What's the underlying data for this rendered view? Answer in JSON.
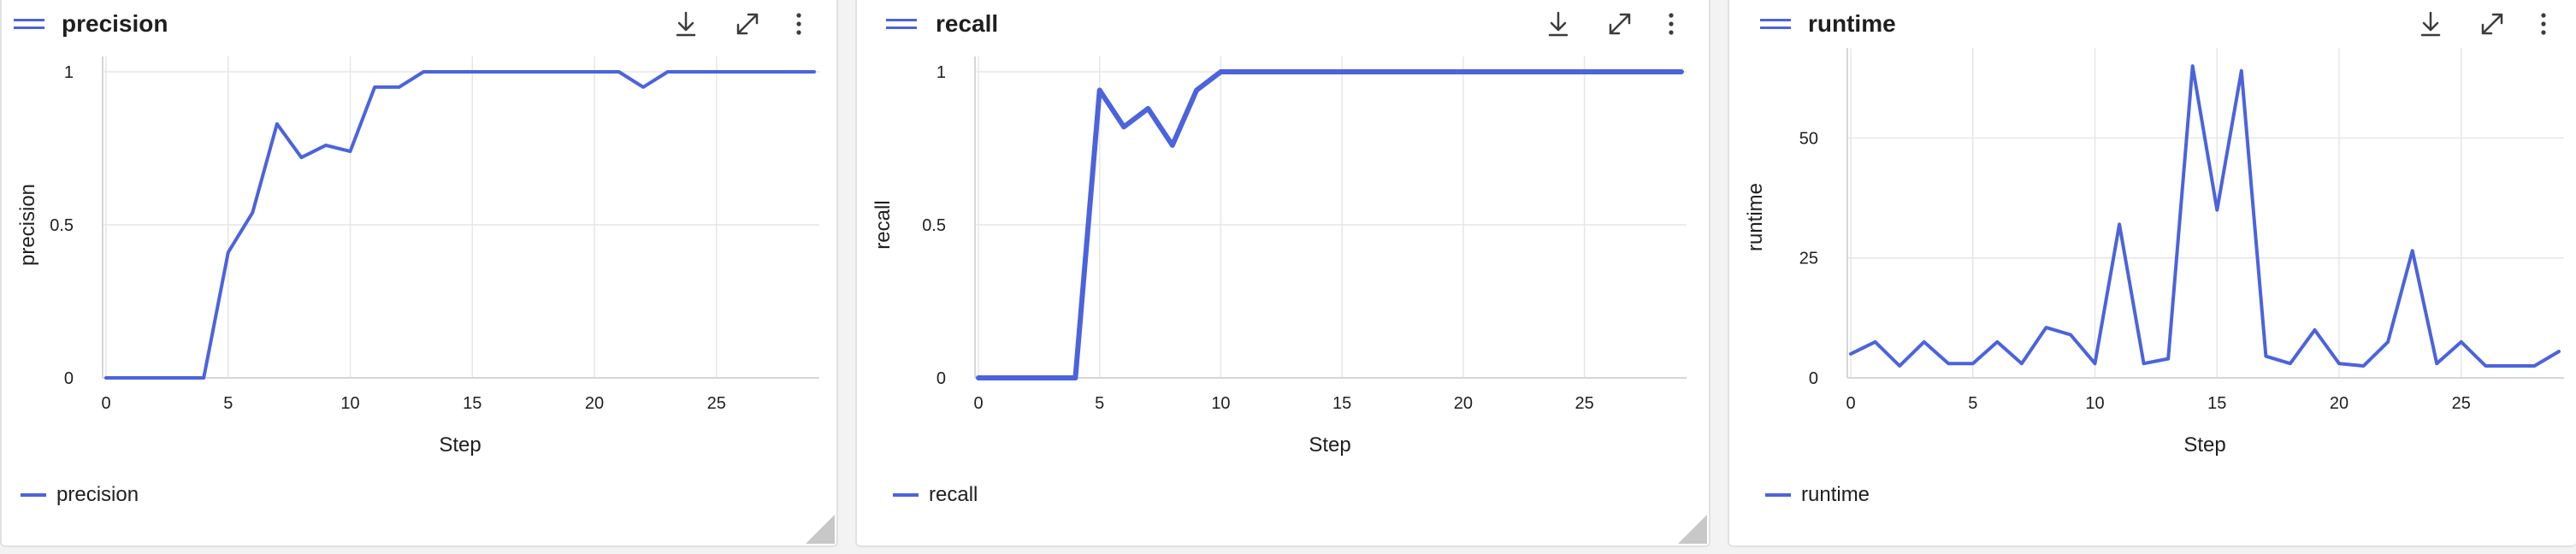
{
  "panels": [
    {
      "title": "precision",
      "legend_label": "precision",
      "icons": [
        "drag-handle-icon",
        "download-icon",
        "expand-icon",
        "more-options-icon"
      ]
    },
    {
      "title": "recall",
      "legend_label": "recall",
      "icons": [
        "drag-handle-icon",
        "download-icon",
        "expand-icon",
        "more-options-icon"
      ]
    },
    {
      "title": "runtime",
      "legend_label": "runtime",
      "icons": [
        "drag-handle-icon",
        "download-icon",
        "expand-icon",
        "more-options-icon"
      ]
    }
  ],
  "colors": {
    "series": "#4b63dd",
    "grid": "#e6e6e6",
    "icon": "#3c3c3c",
    "accent": "#4b63dd"
  },
  "chart_data": [
    {
      "type": "line",
      "title": "precision",
      "xlabel": "Step",
      "ylabel": "precision",
      "xlim": [
        0,
        29
      ],
      "ylim": [
        0,
        1
      ],
      "xticks": [
        0,
        5,
        10,
        15,
        20,
        25
      ],
      "yticks": [
        0,
        0.5,
        1
      ],
      "ytick_labels": [
        "0",
        "0.5",
        "1"
      ],
      "grid": true,
      "legend": "bottom-left",
      "series": [
        {
          "name": "precision",
          "x": [
            0,
            1,
            2,
            3,
            4,
            5,
            6,
            7,
            8,
            9,
            10,
            11,
            12,
            13,
            14,
            15,
            16,
            17,
            18,
            19,
            20,
            21,
            22,
            23,
            24,
            25,
            26,
            27,
            28,
            29
          ],
          "y": [
            0,
            0,
            0,
            0,
            0,
            0.41,
            0.54,
            0.83,
            0.72,
            0.76,
            0.74,
            0.95,
            0.95,
            1,
            1,
            1,
            1,
            1,
            1,
            1,
            1,
            1,
            0.95,
            1,
            1,
            1,
            1,
            1,
            1,
            1
          ]
        }
      ]
    },
    {
      "type": "line",
      "title": "recall",
      "xlabel": "Step",
      "ylabel": "recall",
      "xlim": [
        0,
        29
      ],
      "ylim": [
        0,
        1
      ],
      "xticks": [
        0,
        5,
        10,
        15,
        20,
        25
      ],
      "yticks": [
        0,
        0.5,
        1
      ],
      "ytick_labels": [
        "0",
        "0.5",
        "1"
      ],
      "grid": true,
      "legend": "bottom-left",
      "series": [
        {
          "name": "recall",
          "x": [
            0,
            1,
            2,
            3,
            4,
            5,
            6,
            7,
            8,
            9,
            10,
            11,
            12,
            13,
            14,
            15,
            16,
            17,
            18,
            19,
            20,
            21,
            22,
            23,
            24,
            25,
            26,
            27,
            28,
            29
          ],
          "y": [
            0,
            0,
            0,
            0,
            0,
            0.94,
            0.82,
            0.88,
            0.76,
            0.94,
            1,
            1,
            1,
            1,
            1,
            1,
            1,
            1,
            1,
            1,
            1,
            1,
            1,
            1,
            1,
            1,
            1,
            1,
            1,
            1
          ]
        }
      ]
    },
    {
      "type": "line",
      "title": "runtime",
      "xlabel": "Step",
      "ylabel": "runtime",
      "xlim": [
        0,
        29
      ],
      "ylim": [
        0,
        67
      ],
      "xticks": [
        0,
        5,
        10,
        15,
        20,
        25
      ],
      "yticks": [
        0,
        25,
        50
      ],
      "ytick_labels": [
        "0",
        "25",
        "50"
      ],
      "grid": true,
      "legend": "bottom-left",
      "series": [
        {
          "name": "runtime",
          "x": [
            0,
            1,
            2,
            3,
            4,
            5,
            6,
            7,
            8,
            9,
            10,
            11,
            12,
            13,
            14,
            15,
            16,
            17,
            18,
            19,
            20,
            21,
            22,
            23,
            24,
            25,
            26,
            27,
            28,
            29
          ],
          "y": [
            5,
            7.5,
            2.5,
            7.5,
            3,
            3,
            7.5,
            3,
            10.5,
            9,
            3,
            32,
            3,
            4,
            65,
            35,
            64,
            4.5,
            3,
            10,
            3,
            2.5,
            7.5,
            26.5,
            3,
            7.5,
            2.5,
            2.5,
            2.5,
            5.5
          ]
        }
      ]
    }
  ]
}
